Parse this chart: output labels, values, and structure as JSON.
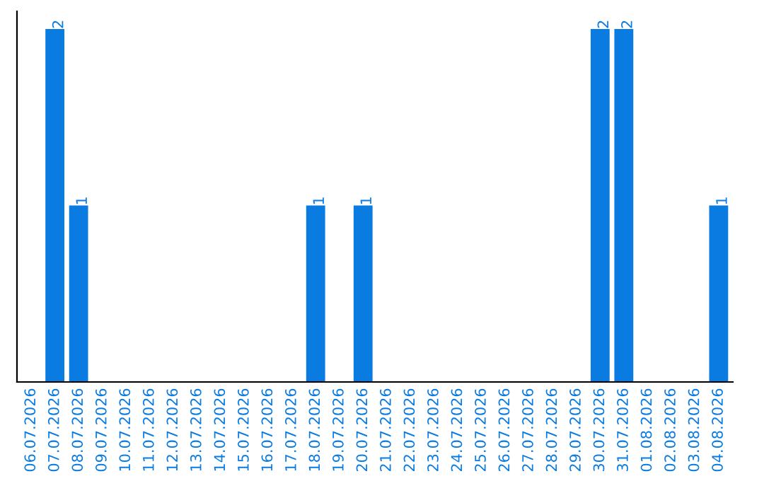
{
  "chart_data": {
    "type": "bar",
    "categories": [
      "06.07.2026",
      "07.07.2026",
      "08.07.2026",
      "09.07.2026",
      "10.07.2026",
      "11.07.2026",
      "12.07.2026",
      "13.07.2026",
      "14.07.2026",
      "15.07.2026",
      "16.07.2026",
      "17.07.2026",
      "18.07.2026",
      "19.07.2026",
      "20.07.2026",
      "21.07.2026",
      "22.07.2026",
      "23.07.2026",
      "24.07.2026",
      "25.07.2026",
      "26.07.2026",
      "27.07.2026",
      "28.07.2026",
      "29.07.2026",
      "30.07.2026",
      "31.07.2026",
      "01.08.2026",
      "02.08.2026",
      "03.08.2026",
      "04.08.2026"
    ],
    "values": [
      0,
      2,
      1,
      0,
      0,
      0,
      0,
      0,
      0,
      0,
      0,
      0,
      1,
      0,
      1,
      0,
      0,
      0,
      0,
      0,
      0,
      0,
      0,
      0,
      2,
      2,
      0,
      0,
      0,
      1
    ],
    "value_labels": [
      null,
      "2",
      "1",
      null,
      null,
      null,
      null,
      null,
      null,
      null,
      null,
      null,
      "1",
      null,
      "1",
      null,
      null,
      null,
      null,
      null,
      null,
      null,
      null,
      null,
      "2",
      "2",
      null,
      null,
      null,
      "1"
    ],
    "color": "#0a7be0",
    "grid": false,
    "legend": false
  }
}
